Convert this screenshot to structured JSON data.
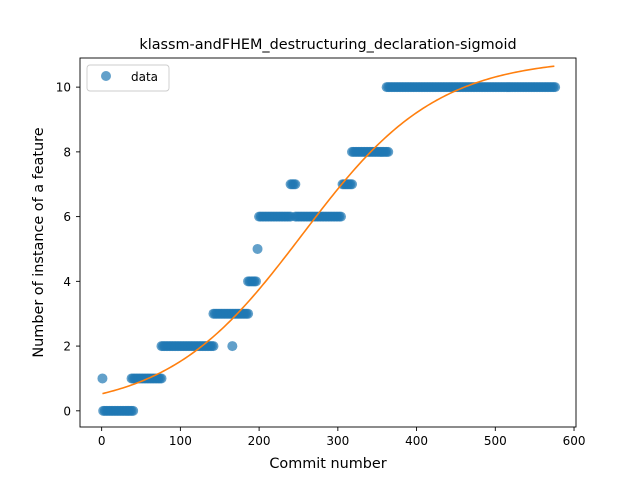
{
  "chart_data": {
    "type": "scatter",
    "title": "klassm-andFHEM_destructuring_declaration-sigmoid",
    "xlabel": "Commit number",
    "ylabel": "Number of instance of a feature",
    "xlim": [
      -27.5,
      602.5
    ],
    "ylim": [
      -0.5,
      10.9
    ],
    "xticks": [
      0,
      100,
      200,
      300,
      400,
      500,
      600
    ],
    "yticks": [
      0,
      2,
      4,
      6,
      8,
      10
    ],
    "grid": false,
    "legend": {
      "position": "top-left",
      "entries": [
        "data"
      ]
    },
    "colors": {
      "data": "#1f77b4",
      "fit": "#ff7f0e"
    },
    "series": [
      {
        "name": "data",
        "kind": "points",
        "segments": [
          {
            "y": 1,
            "x_from": 1,
            "x_to": 1,
            "step": 1
          },
          {
            "y": 0,
            "x_from": 2,
            "x_to": 40,
            "step": 2
          },
          {
            "y": 1,
            "x_from": 38,
            "x_to": 76,
            "step": 2
          },
          {
            "y": 2,
            "x_from": 76,
            "x_to": 142,
            "step": 2
          },
          {
            "y": 3,
            "x_from": 142,
            "x_to": 186,
            "step": 2
          },
          {
            "y": 2,
            "x_from": 166,
            "x_to": 166,
            "step": 1
          },
          {
            "y": 4,
            "x_from": 186,
            "x_to": 196,
            "step": 2
          },
          {
            "y": 5,
            "x_from": 198,
            "x_to": 198,
            "step": 1
          },
          {
            "y": 6,
            "x_from": 200,
            "x_to": 240,
            "step": 2
          },
          {
            "y": 7,
            "x_from": 240,
            "x_to": 246,
            "step": 2
          },
          {
            "y": 6,
            "x_from": 246,
            "x_to": 304,
            "step": 2
          },
          {
            "y": 7,
            "x_from": 306,
            "x_to": 318,
            "step": 2
          },
          {
            "y": 8,
            "x_from": 318,
            "x_to": 364,
            "step": 2
          },
          {
            "y": 10,
            "x_from": 362,
            "x_to": 576,
            "step": 2
          }
        ]
      },
      {
        "name": "",
        "kind": "curve",
        "function": "sigmoid",
        "params": {
          "L": 10.9,
          "k": 0.0117,
          "x0": 255
        },
        "x_range": [
          1,
          575
        ]
      }
    ]
  }
}
